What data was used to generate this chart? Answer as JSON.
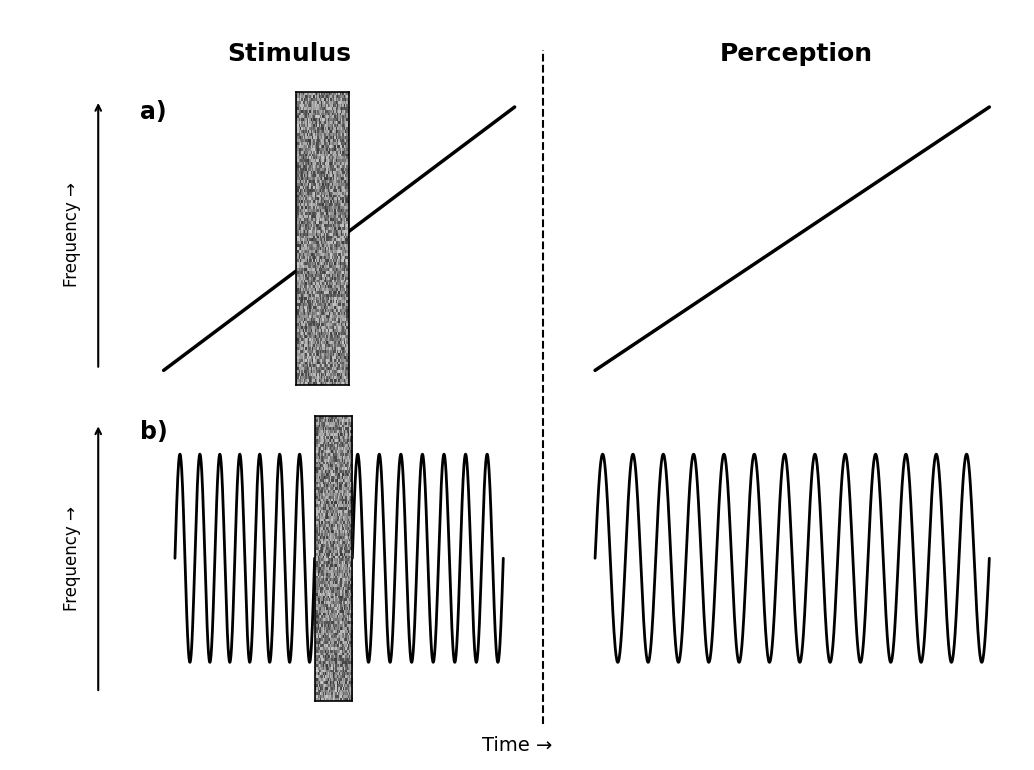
{
  "title_stimulus": "Stimulus",
  "title_perception": "Perception",
  "xlabel": "Time →",
  "label_a": "a)",
  "label_b": "b)",
  "freq_label": "Frequency →",
  "bg_color": "#ffffff",
  "line_color": "#000000",
  "noise_seed": 42,
  "fig_width": 10.34,
  "fig_height": 7.7,
  "dpi": 100,
  "title_fontsize": 18,
  "label_fontsize": 17,
  "freq_label_fontsize": 12,
  "xlabel_fontsize": 14
}
